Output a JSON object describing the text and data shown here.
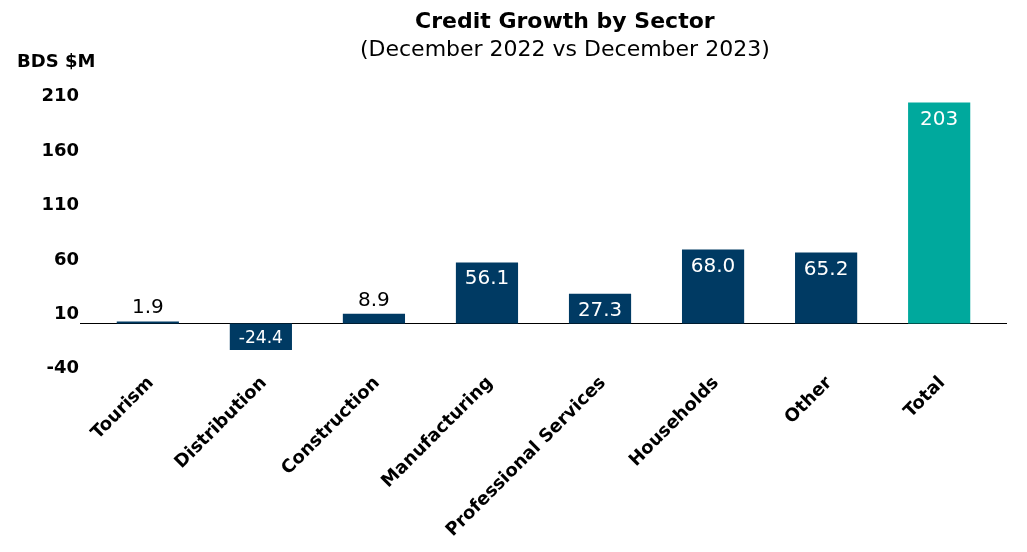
{
  "chart_data": {
    "type": "bar",
    "title": "Credit Growth by Sector",
    "subtitle": "(December 2022 vs December 2023)",
    "ylabel": "BDS $M",
    "categories": [
      "Tourism",
      "Distribution",
      "Construction",
      "Manufacturing",
      "Professional Services",
      "Households",
      "Other",
      "Total"
    ],
    "values": [
      1.9,
      -24.4,
      8.9,
      56.1,
      27.3,
      68.0,
      65.2,
      203
    ],
    "colors": [
      "#003a63",
      "#003a63",
      "#003a63",
      "#003a63",
      "#003a63",
      "#003a63",
      "#003a63",
      "#00a99d"
    ],
    "value_labels": [
      "1.9",
      "-24.4",
      "8.9",
      "56.1",
      "27.3",
      "68.0",
      "65.2",
      "203"
    ],
    "ylim": [
      -40,
      210
    ],
    "yticks": [
      -40,
      10,
      60,
      110,
      160,
      210
    ],
    "legend": false
  }
}
